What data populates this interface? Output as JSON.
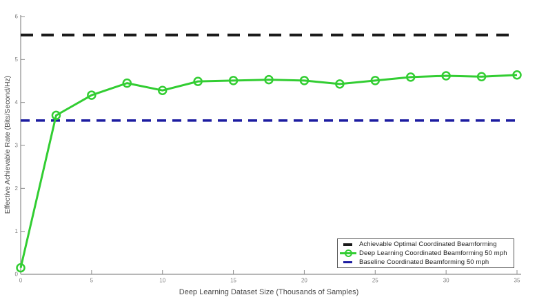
{
  "chart_data": {
    "type": "line",
    "title": "",
    "xlabel": "Deep Learning Dataset Size (Thousands of Samples)",
    "ylabel": "Effective Achievable Rate (Bits/Second/Hz)",
    "xlim": [
      0,
      35
    ],
    "ylim": [
      0,
      6
    ],
    "x_ticks": [
      0,
      5,
      10,
      15,
      20,
      25,
      30,
      35
    ],
    "y_ticks": [
      0,
      1,
      2,
      3,
      4,
      5,
      6
    ],
    "grid": false,
    "legend_position": "inside-bottom-right",
    "axis_color": "#8c8c8c",
    "tick_label_color": "#808080",
    "tick_label_font_size": 8,
    "series": [
      {
        "name": "Achievable Optimal Coordinated Beamforming",
        "type": "hline",
        "value": 5.57,
        "color": "#1a1a1a",
        "style": "dashed",
        "dash": [
          18,
          12
        ],
        "width": 4
      },
      {
        "name": "Deep Learning Coordinated Beamforming 50 mph",
        "type": "line",
        "color": "#32cd32",
        "style": "solid",
        "width": 3,
        "marker": "circle",
        "marker_radius": 5.5,
        "marker_stroke_width": 2.5,
        "x": [
          0,
          2.5,
          5,
          7.5,
          10,
          12.5,
          15,
          17.5,
          20,
          22.5,
          25,
          27.5,
          30,
          32.5,
          35
        ],
        "y": [
          0.15,
          3.7,
          4.17,
          4.45,
          4.28,
          4.49,
          4.51,
          4.53,
          4.51,
          4.43,
          4.51,
          4.59,
          4.62,
          4.6,
          4.64
        ]
      },
      {
        "name": "Baseline Coordinated Beamforming 50 mph",
        "type": "hline",
        "value": 3.58,
        "color": "#1c1ca0",
        "style": "dashed",
        "dash": [
          13,
          9
        ],
        "width": 3.5
      }
    ]
  }
}
